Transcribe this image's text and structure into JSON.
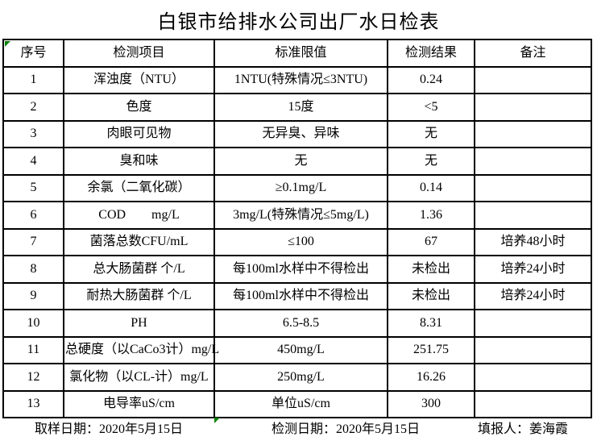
{
  "title": "白银市给排水公司出厂水日检表",
  "colors": {
    "background": "#ffffff",
    "text": "#000000",
    "table_border": "#000000",
    "error_indicator_green": "#008000"
  },
  "icons": {
    "error_indicator": "green-corner-triangle"
  },
  "table": {
    "headers": [
      "序号",
      "检测项目",
      "标准限值",
      "检测结果",
      "备注"
    ],
    "rows": [
      [
        "1",
        "浑浊度（NTU）",
        "1NTU(特殊情况≤3NTU)",
        "0.24",
        ""
      ],
      [
        "2",
        "色度",
        "15度",
        "<5",
        ""
      ],
      [
        "3",
        "肉眼可见物",
        "无异臭、异味",
        "无",
        ""
      ],
      [
        "4",
        "臭和味",
        "无",
        "无",
        ""
      ],
      [
        "5",
        "余氯（二氧化碳）",
        "≥0.1mg/L",
        "0.14",
        ""
      ],
      [
        "6",
        "COD        mg/L",
        "3mg/L(特殊情况≤5mg/L)",
        "1.36",
        ""
      ],
      [
        "7",
        "菌落总数CFU/mL",
        "≤100",
        "67",
        "培养48小时"
      ],
      [
        "8",
        "总大肠菌群 个/L",
        "每100ml水样中不得检出",
        "未检出",
        "培养24小时"
      ],
      [
        "9",
        "耐热大肠菌群 个/L",
        "每100ml水样中不得检出",
        "未检出",
        "培养24小时"
      ],
      [
        "10",
        "PH",
        "6.5-8.5",
        "8.31",
        ""
      ],
      [
        "11",
        "总硬度（以CaCo3计）mg/L",
        "450mg/L",
        "251.75",
        ""
      ],
      [
        "12",
        "氯化物（以CL-计）mg/L",
        "250mg/L",
        "16.26",
        ""
      ],
      [
        "13",
        "电导率uS/cm",
        "单位uS/cm",
        "300",
        ""
      ]
    ]
  },
  "footer": {
    "sampling_date": "取样日期：2020年5月15日",
    "testing_date": "检测日期：2020年5月15日",
    "reporter": "填报人：姜海霞"
  }
}
